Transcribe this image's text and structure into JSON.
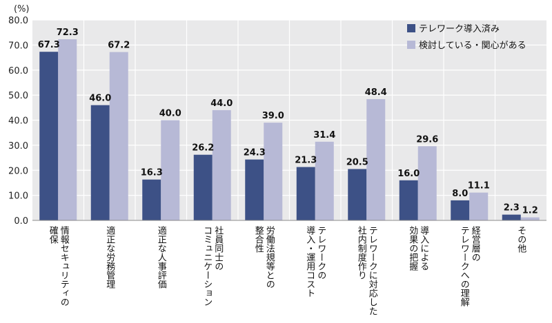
{
  "chart_data": {
    "type": "bar",
    "unit_label": "(%)",
    "ylim": [
      0,
      80
    ],
    "y_ticks": [
      "0.0",
      "10.0",
      "20.0",
      "30.0",
      "40.0",
      "50.0",
      "60.0",
      "70.0",
      "80.0"
    ],
    "grid": true,
    "legend_position": "top-right",
    "categories": [
      {
        "lines": [
          "情報セキュリティの",
          "確保"
        ]
      },
      {
        "lines": [
          "適正な労務管理"
        ]
      },
      {
        "lines": [
          "適正な人事評価"
        ]
      },
      {
        "lines": [
          "社員同士の",
          "コミュニケーション"
        ]
      },
      {
        "lines": [
          "労働法規等との",
          "整合性"
        ]
      },
      {
        "lines": [
          "テレワークの",
          "導入・運用コスト"
        ]
      },
      {
        "lines": [
          "テレワークに対応した",
          "社内制度作り"
        ]
      },
      {
        "lines": [
          "導入による",
          "効果の把握"
        ]
      },
      {
        "lines": [
          "経営層の",
          "テレワークへの理解"
        ]
      },
      {
        "lines": [
          "その他"
        ]
      }
    ],
    "series": [
      {
        "name": "テレワーク導入済み",
        "color": "#3d5186",
        "values": [
          67.3,
          46.0,
          16.3,
          26.2,
          24.3,
          21.3,
          20.5,
          16.0,
          8.0,
          2.3
        ],
        "labels": [
          "67.3",
          "46.0",
          "16.3",
          "26.2",
          "24.3",
          "21.3",
          "20.5",
          "16.0",
          "8.0",
          "2.3"
        ]
      },
      {
        "name": "検討している・関心がある",
        "color": "#b7b9d6",
        "values": [
          72.3,
          67.2,
          40.0,
          44.0,
          39.0,
          31.4,
          48.4,
          29.6,
          11.1,
          1.2
        ],
        "labels": [
          "72.3",
          "67.2",
          "40.0",
          "44.0",
          "39.0",
          "31.4",
          "48.4",
          "29.6",
          "11.1",
          "1.2"
        ]
      }
    ]
  }
}
